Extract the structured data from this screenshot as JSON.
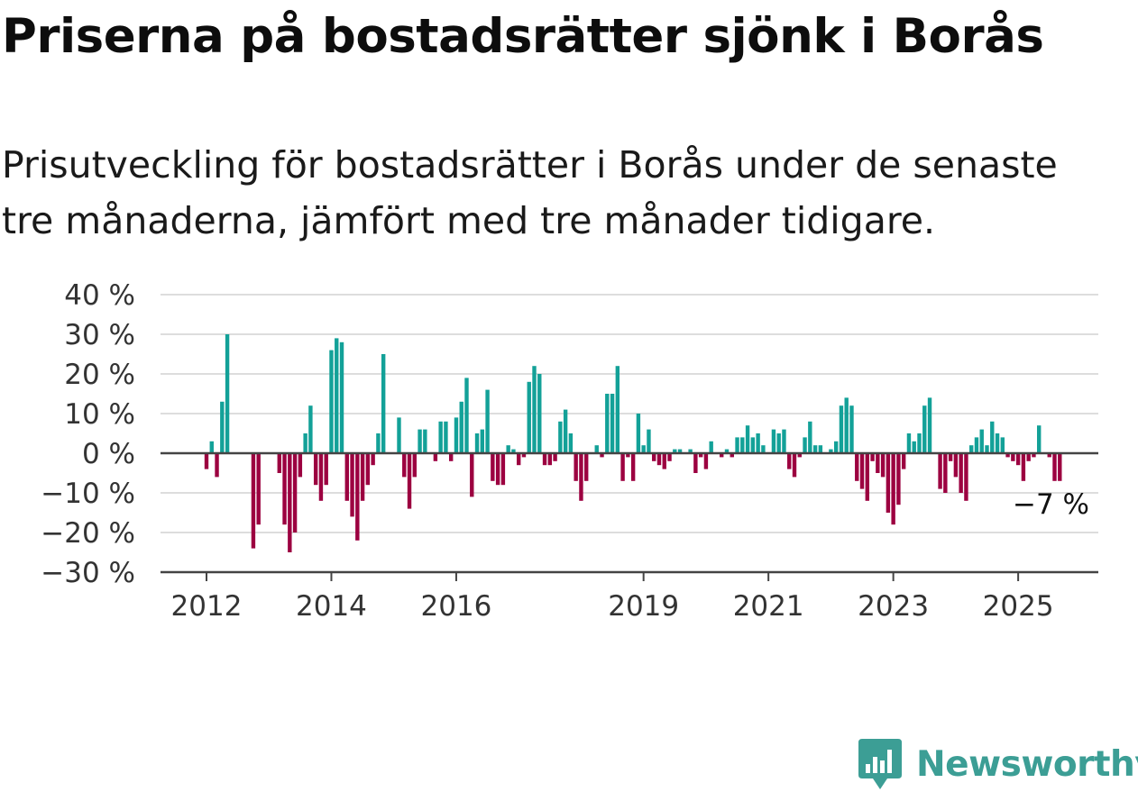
{
  "header": {
    "title": "Priserna på bostadsrätter sjönk i Borås",
    "subtitle_line1": "Prisutveckling för bostadsrätter i Borås under de senaste",
    "subtitle_line2": "tre månaderna, jämfört med tre månader tidigare."
  },
  "brand": {
    "name": "Newsworthy",
    "logo_icon": "newsworthy-chart-badge-icon",
    "color": "#3c9e95"
  },
  "chart_data": {
    "type": "bar",
    "title": "Priserna på bostadsrätter sjönk i Borås",
    "subtitle": "Prisutveckling för bostadsrätter i Borås under de senaste tre månaderna, jämfört med tre månader tidigare.",
    "xlabel": "",
    "ylabel": "",
    "x_unit": "month",
    "start_month": "2012-01",
    "ylim": [
      -30,
      40
    ],
    "y_ticks": [
      40,
      30,
      20,
      10,
      0,
      -10,
      -20,
      -30
    ],
    "y_tick_labels": [
      "40 %",
      "30 %",
      "20 %",
      "10 %",
      "0 %",
      "−10 %",
      "−20 %",
      "−30 %"
    ],
    "x_ticks": [
      "2012",
      "2014",
      "2016",
      "2019",
      "2021",
      "2023",
      "2025"
    ],
    "x_tick_months": [
      "2012-01",
      "2014-01",
      "2016-01",
      "2019-01",
      "2021-01",
      "2023-01",
      "2025-01"
    ],
    "grid": true,
    "colors": {
      "positive": "#13a198",
      "negative": "#9c0040",
      "grid": "#dddddd",
      "axis": "#444444"
    },
    "annotation": {
      "text": "−7 %",
      "value": -7
    },
    "values": [
      -4,
      3,
      -6,
      13,
      30,
      null,
      null,
      null,
      null,
      -24,
      -18,
      null,
      null,
      null,
      -5,
      -18,
      -25,
      -20,
      -6,
      5,
      12,
      -8,
      -12,
      -8,
      26,
      29,
      28,
      -12,
      -16,
      -22,
      -12,
      -8,
      -3,
      5,
      25,
      null,
      null,
      9,
      -6,
      -14,
      -6,
      6,
      6,
      null,
      -2,
      8,
      8,
      -2,
      9,
      13,
      19,
      -11,
      5,
      6,
      16,
      -7,
      -8,
      -8,
      2,
      1,
      -3,
      -1,
      18,
      22,
      20,
      -3,
      -3,
      -2,
      8,
      11,
      5,
      -7,
      -12,
      -7,
      null,
      2,
      -1,
      15,
      15,
      22,
      -7,
      -1,
      -7,
      10,
      2,
      6,
      -2,
      -3,
      -4,
      -2,
      1,
      1,
      null,
      1,
      -5,
      -1,
      -4,
      3,
      null,
      -1,
      1,
      -1,
      4,
      4,
      7,
      4,
      5,
      2,
      null,
      6,
      5,
      6,
      -4,
      -6,
      -1,
      4,
      8,
      2,
      2,
      null,
      1,
      3,
      12,
      14,
      12,
      -7,
      -9,
      -12,
      -2,
      -5,
      -6,
      -15,
      -18,
      -13,
      -4,
      5,
      3,
      5,
      12,
      14,
      null,
      -9,
      -10,
      -2,
      -6,
      -10,
      -12,
      2,
      4,
      6,
      2,
      8,
      5,
      4,
      -1,
      -2,
      -3,
      -7,
      -2,
      -1,
      7,
      null,
      -1,
      -7,
      -7
    ]
  }
}
